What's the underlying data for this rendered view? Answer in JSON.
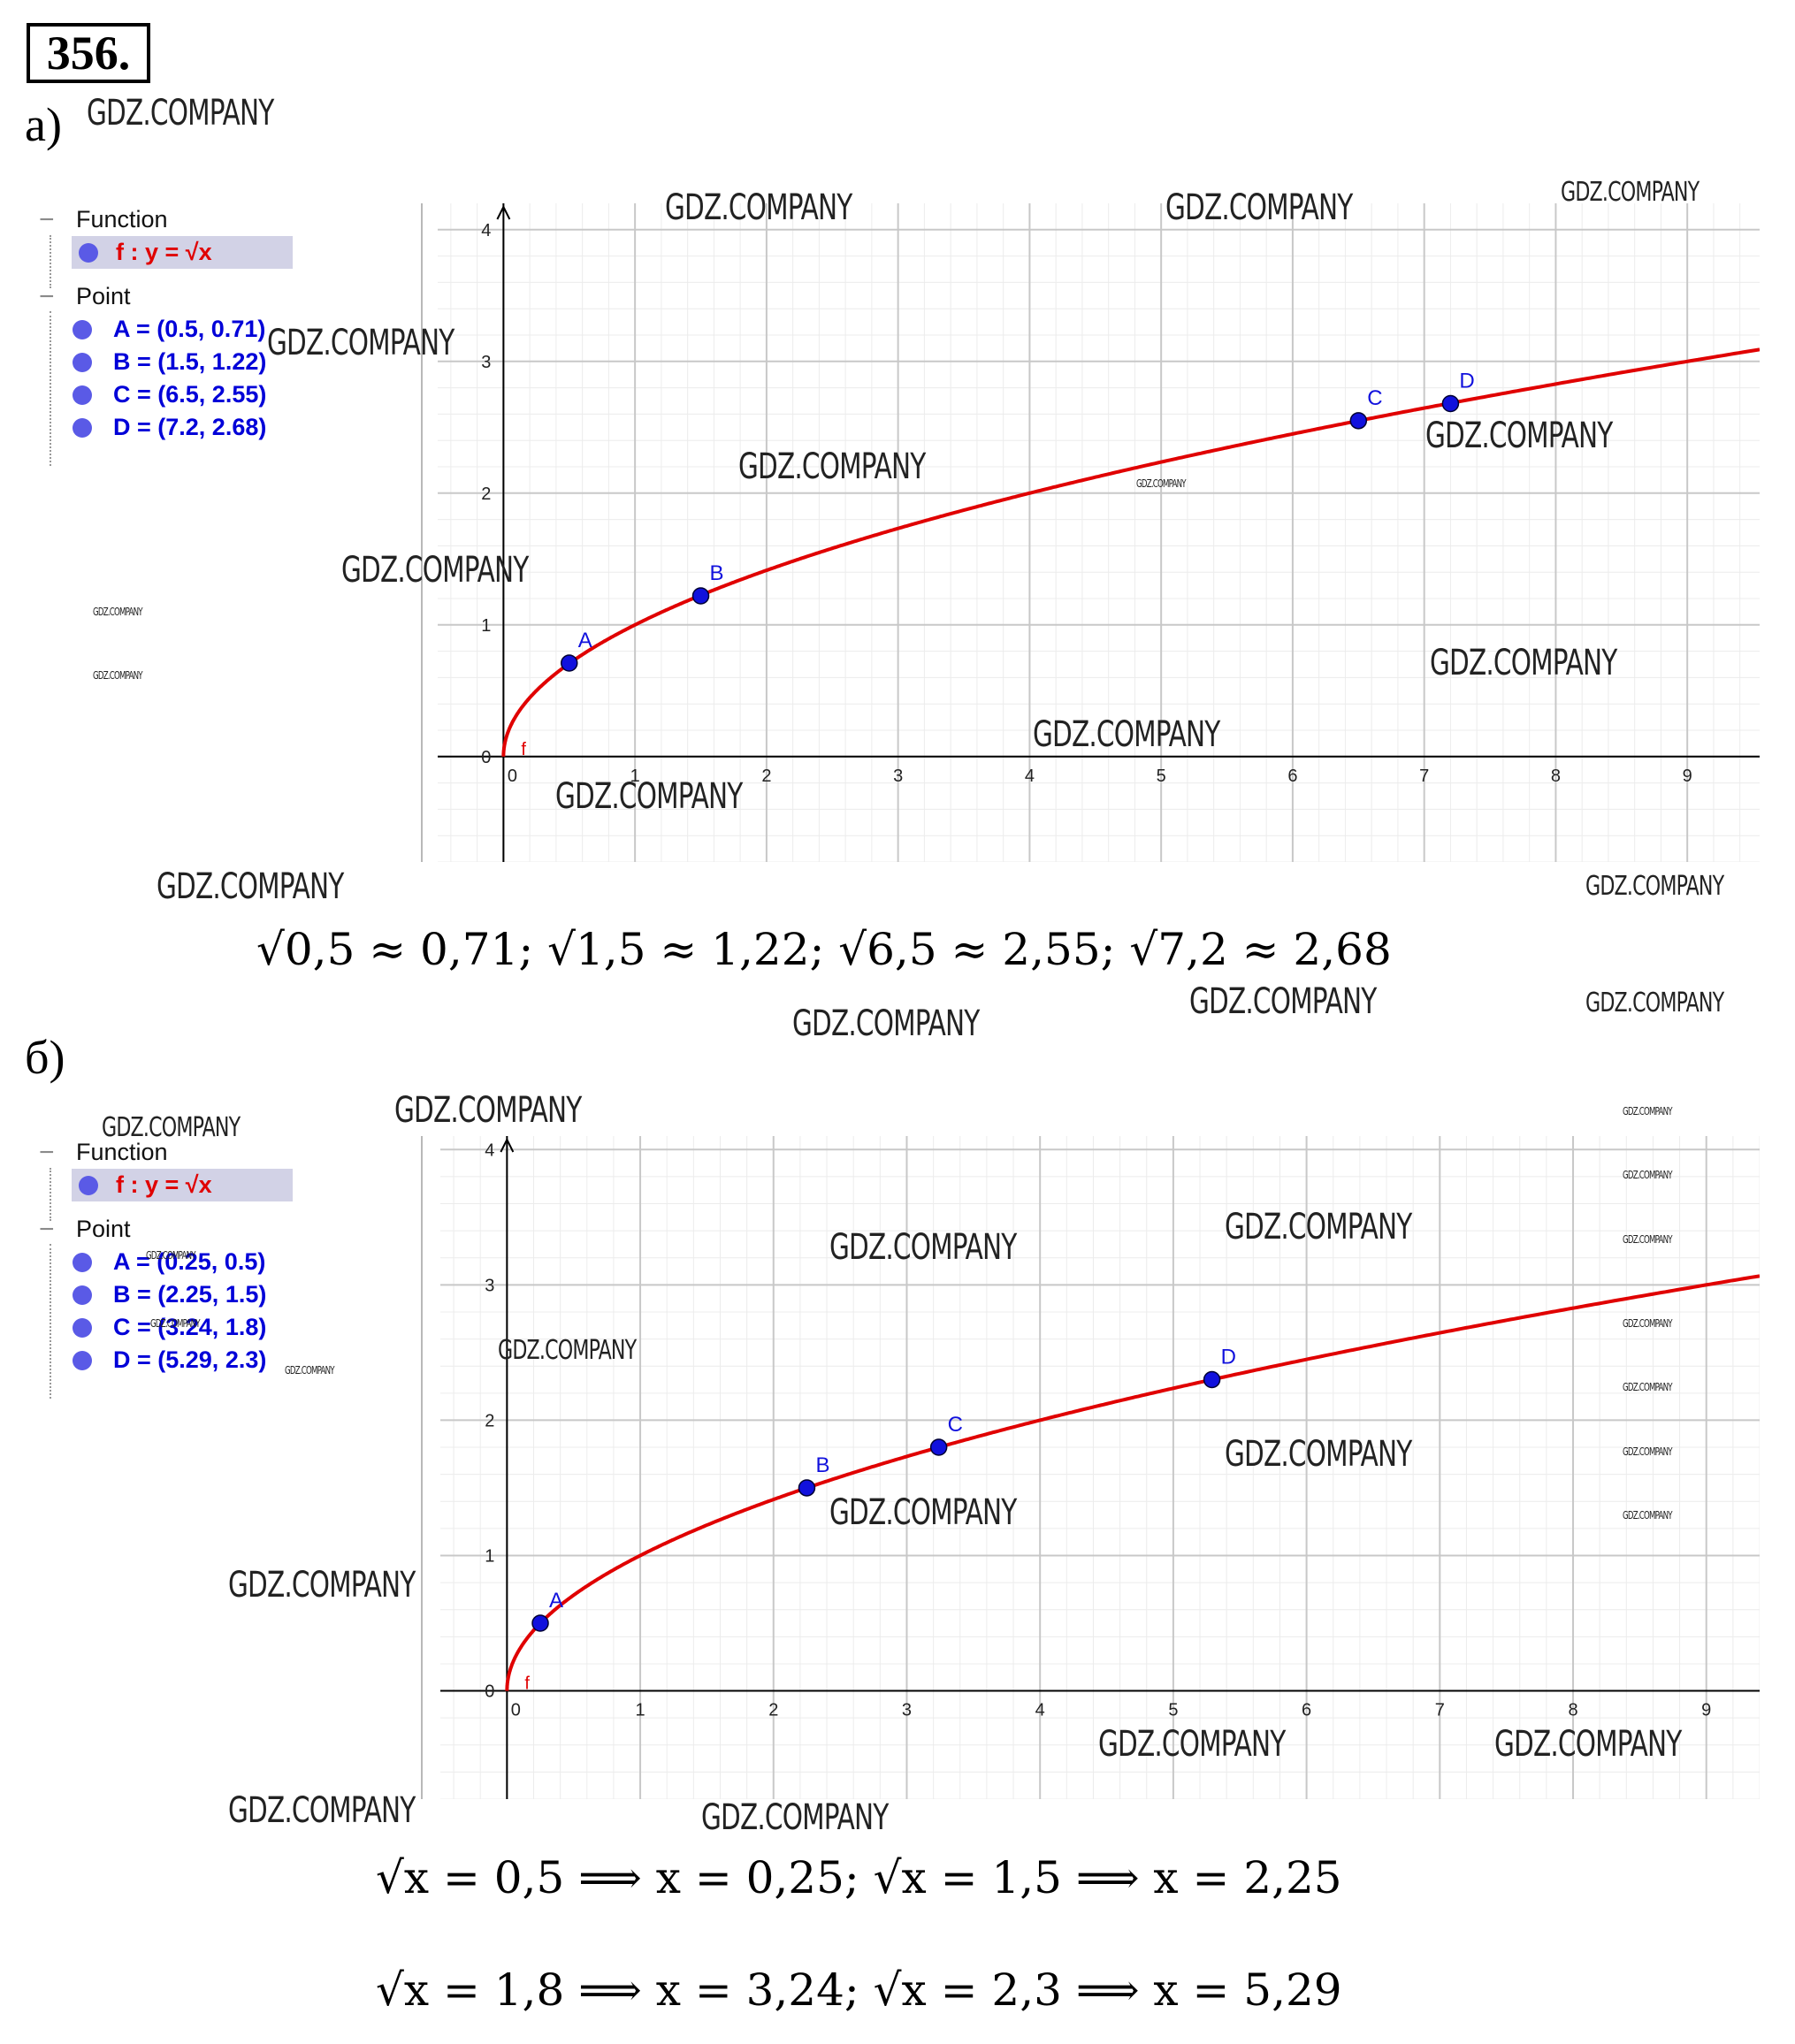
{
  "problem_number": "356.",
  "parts": [
    {
      "label": "а)",
      "algebra": {
        "function_header": "Function",
        "function_label": "f : y = √x",
        "point_header": "Point",
        "points": [
          "A = (0.5, 0.71)",
          "B = (1.5, 1.22)",
          "C = (6.5, 2.55)",
          "D = (7.2, 2.68)"
        ]
      },
      "formula": "√0,5 ≈ 0,71;   √1,5 ≈ 1,22;   √6,5 ≈ 2,55;   √7,2 ≈ 2,68"
    },
    {
      "label": "б)",
      "algebra": {
        "function_header": "Function",
        "function_label": "f : y = √x",
        "point_header": "Point",
        "points": [
          "A = (0.25, 0.5)",
          "B = (2.25, 1.5)",
          "C = (3.24, 1.8)",
          "D = (5.29, 2.3)"
        ]
      },
      "formulas": [
        "√x = 0,5 ⟹ x = 0,25;  √x = 1,5 ⟹ x = 2,25",
        "√x = 1,8 ⟹ x = 3,24;  √x = 2,3 ⟹ x = 5,29"
      ]
    }
  ],
  "watermark_text": "GDZ.COMPANY",
  "colors": {
    "curve": "#e00000",
    "point": "#1111dd",
    "grid_major": "#c8c8c8",
    "grid_minor": "#ececec",
    "axis": "#000000"
  },
  "chart_data": [
    {
      "type": "line",
      "function": "y = sqrt(x)",
      "curve_label": "f",
      "x_ticks": [
        0,
        1,
        2,
        3,
        4,
        5,
        6,
        7,
        8,
        9
      ],
      "y_ticks": [
        0,
        1,
        2,
        3,
        4
      ],
      "xlim": [
        -0.5,
        9.55
      ],
      "ylim": [
        -0.8,
        4.2
      ],
      "grid": true,
      "points": [
        {
          "name": "A",
          "x": 0.5,
          "y": 0.71
        },
        {
          "name": "B",
          "x": 1.5,
          "y": 1.22
        },
        {
          "name": "C",
          "x": 6.5,
          "y": 2.55
        },
        {
          "name": "D",
          "x": 7.2,
          "y": 2.68
        }
      ]
    },
    {
      "type": "line",
      "function": "y = sqrt(x)",
      "curve_label": "f",
      "x_ticks": [
        0,
        1,
        2,
        3,
        4,
        5,
        6,
        7,
        8,
        9
      ],
      "y_ticks": [
        0,
        1,
        2,
        3,
        4
      ],
      "xlim": [
        -0.5,
        9.4
      ],
      "ylim": [
        -0.8,
        4.1
      ],
      "grid": true,
      "points": [
        {
          "name": "A",
          "x": 0.25,
          "y": 0.5
        },
        {
          "name": "B",
          "x": 2.25,
          "y": 1.5
        },
        {
          "name": "C",
          "x": 3.24,
          "y": 1.8
        },
        {
          "name": "D",
          "x": 5.29,
          "y": 2.3
        }
      ]
    }
  ]
}
